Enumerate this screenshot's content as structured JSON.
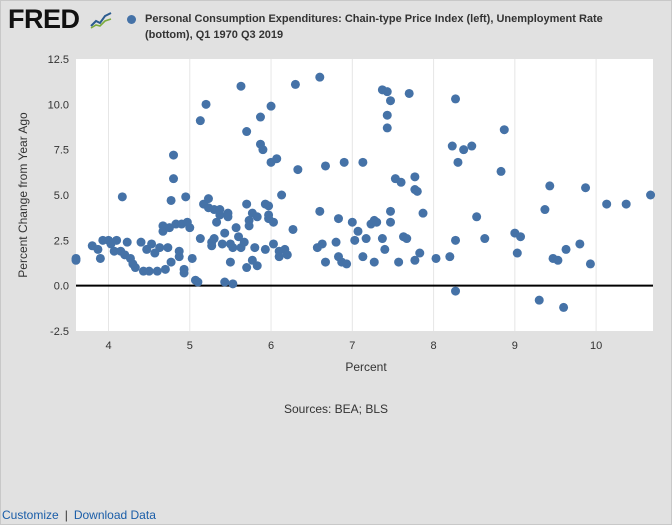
{
  "header": {
    "logo_text": "FRED",
    "legend_label": "Personal Consumption Expenditures: Chain-type Price Index (left), Unemployment Rate (bottom), Q1 1970 Q3 2019"
  },
  "colors": {
    "point": "#4572a7",
    "plot_bg": "#ffffff",
    "frame_bg": "#e1e1e1",
    "link": "#1a5da8"
  },
  "footer": {
    "sources": "Sources: BEA; BLS",
    "customize_label": "Customize",
    "separator": "|",
    "download_label": "Download Data"
  },
  "chart_data": {
    "type": "scatter",
    "title": "Personal Consumption Expenditures: Chain-type Price Index (left), Unemployment Rate (bottom), Q1 1970 Q3 2019",
    "xlabel": "Percent",
    "ylabel": "Percent Change from Year Ago",
    "xlim": [
      3.6,
      10.7
    ],
    "ylim": [
      -2.5,
      12.5
    ],
    "xticks": [
      4,
      5,
      6,
      7,
      8,
      9,
      10
    ],
    "yticks": [
      -2.5,
      0.0,
      2.5,
      5.0,
      7.5,
      10.0,
      12.5
    ],
    "ytick_labels": [
      "-2.5",
      "0.0",
      "2.5",
      "5.0",
      "7.5",
      "10.0",
      "12.5"
    ],
    "zero_line": true,
    "grid": "vertical",
    "points": [
      [
        3.6,
        1.5
      ],
      [
        3.6,
        1.4
      ],
      [
        3.8,
        2.2
      ],
      [
        3.87,
        2.0
      ],
      [
        3.9,
        1.5
      ],
      [
        3.93,
        2.5
      ],
      [
        4.0,
        2.5
      ],
      [
        4.03,
        2.3
      ],
      [
        4.07,
        1.9
      ],
      [
        4.1,
        2.5
      ],
      [
        4.15,
        1.9
      ],
      [
        4.17,
        4.9
      ],
      [
        4.2,
        1.7
      ],
      [
        4.23,
        2.4
      ],
      [
        4.27,
        1.5
      ],
      [
        4.3,
        1.2
      ],
      [
        4.33,
        1.0
      ],
      [
        4.4,
        2.4
      ],
      [
        4.43,
        0.8
      ],
      [
        4.47,
        2.0
      ],
      [
        4.5,
        0.8
      ],
      [
        4.53,
        2.3
      ],
      [
        4.57,
        1.8
      ],
      [
        4.6,
        0.8
      ],
      [
        4.63,
        2.1
      ],
      [
        4.67,
        3.0
      ],
      [
        4.67,
        3.3
      ],
      [
        4.7,
        0.9
      ],
      [
        4.73,
        2.1
      ],
      [
        4.75,
        3.2
      ],
      [
        4.77,
        1.3
      ],
      [
        4.77,
        4.7
      ],
      [
        4.8,
        7.2
      ],
      [
        4.8,
        5.9
      ],
      [
        4.83,
        3.4
      ],
      [
        4.87,
        1.9
      ],
      [
        4.87,
        1.6
      ],
      [
        4.9,
        3.4
      ],
      [
        4.93,
        0.9
      ],
      [
        4.93,
        0.7
      ],
      [
        4.95,
        4.9
      ],
      [
        4.97,
        3.5
      ],
      [
        5.0,
        3.2
      ],
      [
        5.03,
        1.5
      ],
      [
        5.07,
        0.3
      ],
      [
        5.1,
        0.2
      ],
      [
        5.13,
        2.6
      ],
      [
        5.13,
        9.1
      ],
      [
        5.17,
        4.5
      ],
      [
        5.2,
        10.0
      ],
      [
        5.23,
        4.3
      ],
      [
        5.23,
        4.8
      ],
      [
        5.27,
        2.2
      ],
      [
        5.27,
        2.4
      ],
      [
        5.3,
        4.2
      ],
      [
        5.3,
        2.6
      ],
      [
        5.33,
        3.5
      ],
      [
        5.37,
        3.9
      ],
      [
        5.37,
        4.2
      ],
      [
        5.4,
        2.3
      ],
      [
        5.43,
        2.9
      ],
      [
        5.43,
        0.2
      ],
      [
        5.47,
        3.8
      ],
      [
        5.47,
        4.0
      ],
      [
        5.5,
        1.3
      ],
      [
        5.5,
        2.3
      ],
      [
        5.53,
        2.1
      ],
      [
        5.53,
        0.1
      ],
      [
        5.57,
        3.2
      ],
      [
        5.6,
        2.7
      ],
      [
        5.63,
        2.1
      ],
      [
        5.63,
        11.0
      ],
      [
        5.67,
        2.4
      ],
      [
        5.7,
        8.5
      ],
      [
        5.7,
        4.5
      ],
      [
        5.7,
        1.0
      ],
      [
        5.73,
        3.6
      ],
      [
        5.73,
        3.3
      ],
      [
        5.77,
        4.0
      ],
      [
        5.77,
        1.4
      ],
      [
        5.8,
        2.1
      ],
      [
        5.83,
        3.8
      ],
      [
        5.83,
        1.1
      ],
      [
        5.87,
        9.3
      ],
      [
        5.87,
        7.8
      ],
      [
        5.9,
        7.5
      ],
      [
        5.93,
        4.5
      ],
      [
        5.93,
        2.0
      ],
      [
        5.97,
        3.7
      ],
      [
        5.97,
        4.4
      ],
      [
        5.97,
        3.9
      ],
      [
        6.0,
        9.9
      ],
      [
        6.0,
        6.8
      ],
      [
        6.03,
        3.5
      ],
      [
        6.03,
        2.3
      ],
      [
        6.07,
        7.0
      ],
      [
        6.1,
        1.9
      ],
      [
        6.1,
        1.6
      ],
      [
        6.13,
        5.0
      ],
      [
        6.17,
        2.0
      ],
      [
        6.2,
        1.7
      ],
      [
        6.27,
        3.1
      ],
      [
        6.3,
        11.1
      ],
      [
        6.33,
        6.4
      ],
      [
        6.57,
        2.1
      ],
      [
        6.6,
        11.5
      ],
      [
        6.6,
        4.1
      ],
      [
        6.63,
        2.3
      ],
      [
        6.67,
        6.6
      ],
      [
        6.67,
        1.3
      ],
      [
        6.8,
        2.4
      ],
      [
        6.83,
        3.7
      ],
      [
        6.83,
        1.6
      ],
      [
        6.87,
        1.3
      ],
      [
        6.9,
        6.8
      ],
      [
        6.93,
        1.2
      ],
      [
        7.0,
        3.5
      ],
      [
        7.03,
        2.5
      ],
      [
        7.07,
        3.0
      ],
      [
        7.13,
        1.6
      ],
      [
        7.13,
        6.8
      ],
      [
        7.17,
        2.6
      ],
      [
        7.23,
        3.4
      ],
      [
        7.27,
        3.6
      ],
      [
        7.27,
        1.3
      ],
      [
        7.3,
        3.5
      ],
      [
        7.37,
        10.8
      ],
      [
        7.37,
        2.6
      ],
      [
        7.4,
        2.0
      ],
      [
        7.43,
        10.7
      ],
      [
        7.43,
        9.4
      ],
      [
        7.43,
        8.7
      ],
      [
        7.47,
        10.2
      ],
      [
        7.47,
        4.1
      ],
      [
        7.47,
        3.5
      ],
      [
        7.53,
        5.9
      ],
      [
        7.57,
        1.3
      ],
      [
        7.6,
        5.7
      ],
      [
        7.63,
        2.7
      ],
      [
        7.67,
        2.6
      ],
      [
        7.7,
        10.6
      ],
      [
        7.77,
        1.4
      ],
      [
        7.77,
        6.0
      ],
      [
        7.77,
        5.3
      ],
      [
        7.8,
        5.2
      ],
      [
        7.83,
        1.8
      ],
      [
        7.87,
        4.0
      ],
      [
        8.03,
        1.5
      ],
      [
        8.2,
        1.6
      ],
      [
        8.23,
        7.7
      ],
      [
        8.27,
        10.3
      ],
      [
        8.27,
        2.5
      ],
      [
        8.27,
        -0.3
      ],
      [
        8.3,
        6.8
      ],
      [
        8.37,
        7.5
      ],
      [
        8.47,
        7.7
      ],
      [
        8.53,
        3.8
      ],
      [
        8.63,
        2.6
      ],
      [
        8.83,
        6.3
      ],
      [
        8.87,
        8.6
      ],
      [
        9.0,
        2.9
      ],
      [
        9.03,
        1.8
      ],
      [
        9.07,
        2.7
      ],
      [
        9.3,
        -0.8
      ],
      [
        9.37,
        4.2
      ],
      [
        9.43,
        5.5
      ],
      [
        9.47,
        1.5
      ],
      [
        9.53,
        1.4
      ],
      [
        9.6,
        -1.2
      ],
      [
        9.63,
        2.0
      ],
      [
        9.8,
        2.3
      ],
      [
        9.87,
        5.4
      ],
      [
        9.93,
        1.2
      ],
      [
        10.13,
        4.5
      ],
      [
        10.37,
        4.5
      ],
      [
        10.67,
        5.0
      ]
    ]
  }
}
